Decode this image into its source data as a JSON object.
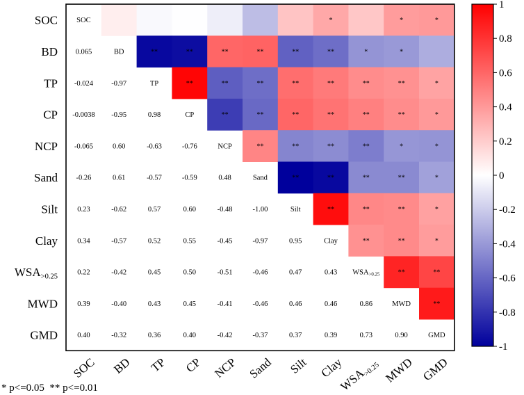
{
  "chart_data": {
    "type": "heatmap",
    "variables": [
      "SOC",
      "BD",
      "TP",
      "CP",
      "NCP",
      "Sand",
      "Silt",
      "Clay",
      "WSA>0.25",
      "MWD",
      "GMD"
    ],
    "row_labels": [
      {
        "base": "SOC",
        "sub": ""
      },
      {
        "base": "BD",
        "sub": ""
      },
      {
        "base": "TP",
        "sub": ""
      },
      {
        "base": "CP",
        "sub": ""
      },
      {
        "base": "NCP",
        "sub": ""
      },
      {
        "base": "Sand",
        "sub": ""
      },
      {
        "base": "Silt",
        "sub": ""
      },
      {
        "base": "Clay",
        "sub": ""
      },
      {
        "base": "WSA",
        "sub": ">0.25"
      },
      {
        "base": "MWD",
        "sub": ""
      },
      {
        "base": "GMD",
        "sub": ""
      }
    ],
    "lower_labels": [
      [
        "SOC"
      ],
      [
        "0.065",
        "BD"
      ],
      [
        "-0.024",
        "-0.97",
        "TP"
      ],
      [
        "-0.0038",
        "-0.95",
        "0.98",
        "CP"
      ],
      [
        "-0.065",
        "0.60",
        "-0.63",
        "-0.76",
        "NCP"
      ],
      [
        "-0.26",
        "0.61",
        "-0.57",
        "-0.59",
        "0.48",
        "Sand"
      ],
      [
        "0.23",
        "-0.62",
        "0.57",
        "0.60",
        "-0.48",
        "-1.00",
        "Silt"
      ],
      [
        "0.34",
        "-0.57",
        "0.52",
        "0.55",
        "-0.45",
        "-0.97",
        "0.95",
        "Clay"
      ],
      [
        "0.22",
        "-0.42",
        "0.45",
        "0.50",
        "-0.51",
        "-0.46",
        "0.47",
        "0.43",
        "WSA>0.25"
      ],
      [
        "0.39",
        "-0.40",
        "0.43",
        "0.45",
        "-0.41",
        "-0.46",
        "0.46",
        "0.46",
        "0.86",
        "MWD"
      ],
      [
        "0.40",
        "-0.32",
        "0.36",
        "0.40",
        "-0.42",
        "-0.37",
        "0.37",
        "0.39",
        "0.73",
        "0.90",
        "GMD"
      ]
    ],
    "upper_values": [
      [
        null,
        0.065,
        -0.024,
        -0.0038,
        -0.065,
        -0.26,
        0.23,
        0.34,
        0.22,
        0.39,
        0.4
      ],
      [
        null,
        null,
        -0.97,
        -0.95,
        0.6,
        0.61,
        -0.62,
        -0.57,
        -0.42,
        -0.4,
        -0.32
      ],
      [
        null,
        null,
        null,
        0.98,
        -0.63,
        -0.57,
        0.57,
        0.52,
        0.45,
        0.43,
        0.36
      ],
      [
        null,
        null,
        null,
        null,
        -0.76,
        -0.59,
        0.6,
        0.55,
        0.5,
        0.45,
        0.4
      ],
      [
        null,
        null,
        null,
        null,
        null,
        0.48,
        -0.48,
        -0.45,
        -0.51,
        -0.41,
        -0.42
      ],
      [
        null,
        null,
        null,
        null,
        null,
        null,
        -1.0,
        -0.97,
        -0.46,
        -0.46,
        -0.37
      ],
      [
        null,
        null,
        null,
        null,
        null,
        null,
        null,
        0.95,
        0.47,
        0.46,
        0.37
      ],
      [
        null,
        null,
        null,
        null,
        null,
        null,
        null,
        null,
        0.43,
        0.46,
        0.39
      ],
      [
        null,
        null,
        null,
        null,
        null,
        null,
        null,
        null,
        null,
        0.86,
        0.73
      ],
      [
        null,
        null,
        null,
        null,
        null,
        null,
        null,
        null,
        null,
        null,
        0.9
      ],
      [
        null,
        null,
        null,
        null,
        null,
        null,
        null,
        null,
        null,
        null,
        null
      ]
    ],
    "upper_stars": [
      [
        "",
        "",
        "",
        "",
        "",
        "",
        "",
        "*",
        "",
        "*",
        "*"
      ],
      [
        "",
        "",
        "**",
        "**",
        "**",
        "**",
        "**",
        "**",
        "*",
        "*",
        ""
      ],
      [
        "",
        "",
        "",
        "**",
        "**",
        "**",
        "**",
        "**",
        "**",
        "**",
        "*"
      ],
      [
        "",
        "",
        "",
        "",
        "**",
        "**",
        "**",
        "**",
        "**",
        "**",
        "*"
      ],
      [
        "",
        "",
        "",
        "",
        "",
        "**",
        "**",
        "**",
        "**",
        "*",
        "*"
      ],
      [
        "",
        "",
        "",
        "",
        "",
        "",
        "**",
        "**",
        "**",
        "**",
        "*"
      ],
      [
        "",
        "",
        "",
        "",
        "",
        "",
        "",
        "**",
        "**",
        "**",
        "*"
      ],
      [
        "",
        "",
        "",
        "",
        "",
        "",
        "",
        "",
        "**",
        "**",
        "*"
      ],
      [
        "",
        "",
        "",
        "",
        "",
        "",
        "",
        "",
        "",
        "**",
        "**"
      ],
      [
        "",
        "",
        "",
        "",
        "",
        "",
        "",
        "",
        "",
        "",
        "**"
      ],
      [
        "",
        "",
        "",
        "",
        "",
        "",
        "",
        "",
        "",
        "",
        ""
      ]
    ],
    "colorbar": {
      "range": [
        -1,
        1
      ],
      "ticks": [
        "1",
        "0.8",
        "0.6",
        "0.4",
        "0.2",
        "0",
        "-0.2",
        "-0.4",
        "-0.6",
        "-0.8",
        "-1"
      ],
      "colors": {
        "negative": "#00009c",
        "zero": "#ffffff",
        "positive": "#ff0000"
      }
    },
    "legend_text": "* p<=0.05  ** p<=0.01"
  }
}
